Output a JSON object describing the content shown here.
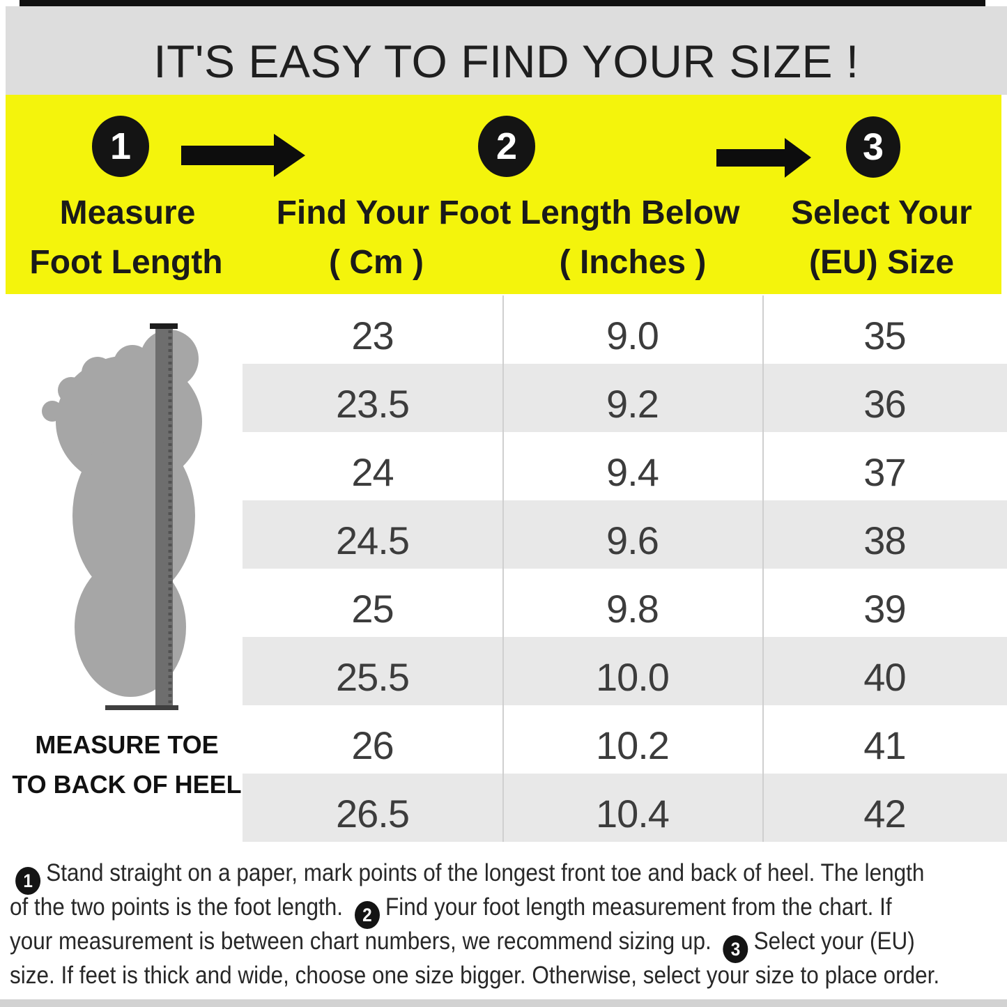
{
  "title": "IT'S EASY TO FIND YOUR SIZE !",
  "steps": [
    {
      "number": "1",
      "label_line1": "Measure",
      "label_line2": "Foot Length"
    },
    {
      "number": "2",
      "label_line1": "Find Your Foot Length Below",
      "label_line2_cm": "( Cm )",
      "label_line2_inches": "( Inches )"
    },
    {
      "number": "3",
      "label_line1": "Select Your",
      "label_line2": "(EU) Size"
    }
  ],
  "diagram": {
    "caption_line1": "MEASURE TOE",
    "caption_line2": "TO BACK OF HEEL"
  },
  "chart_data": {
    "type": "table",
    "columns": [
      "Foot Length ( Cm )",
      "Foot Length ( Inches )",
      "Select Your (EU) Size"
    ],
    "rows": [
      [
        "23",
        "9.0",
        "35"
      ],
      [
        "23.5",
        "9.2",
        "36"
      ],
      [
        "24",
        "9.4",
        "37"
      ],
      [
        "24.5",
        "9.6",
        "38"
      ],
      [
        "25",
        "9.8",
        "39"
      ],
      [
        "25.5",
        "10.0",
        "40"
      ],
      [
        "26",
        "10.2",
        "41"
      ],
      [
        "26.5",
        "10.4",
        "42"
      ]
    ]
  },
  "instructions": {
    "lines": [
      {
        "segments": [
          {
            "badge": "1"
          },
          {
            "text": "Stand straight on a paper, mark points of the longest front toe and back of heel. The length"
          }
        ]
      },
      {
        "segments": [
          {
            "text": "of the two points is the foot length. "
          },
          {
            "badge": "2"
          },
          {
            "text": "Find your foot length measurement from the chart. If"
          }
        ]
      },
      {
        "segments": [
          {
            "text": "your measurement is between chart numbers, we recommend sizing up.  "
          },
          {
            "badge": "3"
          },
          {
            "text": "Select your (EU)"
          }
        ]
      },
      {
        "segments": [
          {
            "text": "size. If feet is thick and wide, choose one size bigger. Otherwise, select your size to place order."
          }
        ]
      }
    ]
  },
  "icons": {
    "step_arrow": "black-right-block-arrow",
    "foot_diagram": "foot-sole-silhouette",
    "ruler": "vertical-ruler-strip"
  },
  "colors": {
    "accent_yellow": "#f4f40c",
    "title_band_gray": "#dddddd",
    "alt_row_gray": "#e8e8e8",
    "foot_gray": "#a6a6a6",
    "ruler_gray": "#6e6e6e",
    "badge_black": "#141414"
  }
}
